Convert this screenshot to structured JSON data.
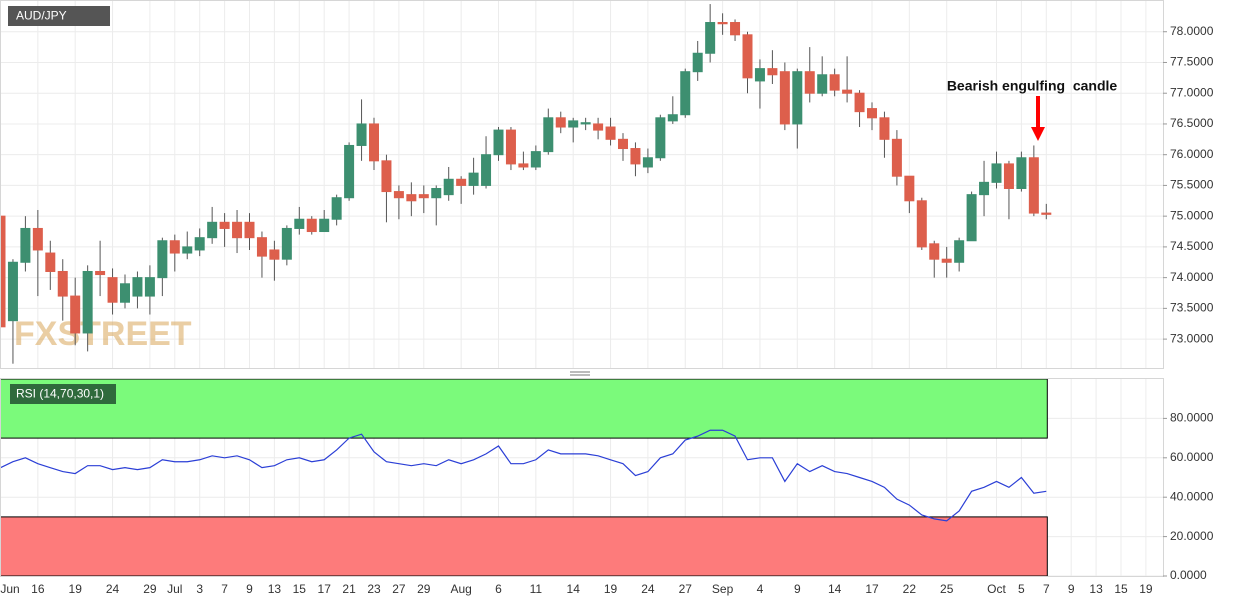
{
  "chart_data": [
    {
      "type": "candlestick",
      "title": "AUD/JPY",
      "watermark": "FXSTREET",
      "annotation": "Bearish engulfing  candle",
      "up_color": "#3d8f70",
      "down_color": "#dd5f4c",
      "grid": true,
      "categories": [
        "Jun",
        null,
        null,
        "16",
        null,
        null,
        "19",
        null,
        null,
        "24",
        null,
        null,
        "29",
        null,
        "Jul",
        null,
        "3",
        null,
        "7",
        null,
        "9",
        null,
        "13",
        null,
        "15",
        null,
        "17",
        null,
        "21",
        null,
        "23",
        null,
        "27",
        null,
        "29",
        null,
        null,
        "Aug",
        null,
        null,
        "6",
        null,
        null,
        "11",
        null,
        null,
        "14",
        null,
        null,
        "19",
        null,
        null,
        "24",
        null,
        null,
        "27",
        null,
        null,
        "Sep",
        null,
        null,
        "4",
        null,
        null,
        "9",
        null,
        null,
        "14",
        null,
        null,
        "17",
        null,
        null,
        "22",
        null,
        null,
        "25",
        null,
        null,
        null,
        "Oct",
        null,
        "5",
        null,
        "7",
        null,
        "9",
        null,
        "13",
        null,
        "15",
        null,
        "19"
      ],
      "open": [
        75.0,
        73.3,
        74.25,
        74.8,
        74.4,
        74.1,
        73.7,
        73.1,
        74.1,
        74.0,
        73.6,
        73.7,
        73.7,
        74.0,
        74.6,
        74.4,
        74.45,
        74.65,
        74.9,
        74.9,
        74.9,
        74.65,
        74.45,
        74.3,
        74.8,
        74.95,
        74.75,
        74.95,
        75.3,
        76.15,
        76.5,
        75.9,
        75.4,
        75.35,
        75.35,
        75.3,
        75.35,
        75.6,
        75.5,
        75.5,
        76.0,
        76.4,
        75.85,
        75.8,
        76.05,
        76.6,
        76.45,
        76.5,
        76.5,
        76.45,
        76.25,
        76.1,
        75.8,
        75.95,
        76.55,
        76.65,
        77.35,
        77.65,
        78.15,
        78.15,
        77.95,
        77.2,
        77.4,
        77.35,
        76.5,
        77.35,
        77.0,
        77.3,
        77.05,
        77.0,
        76.75,
        76.6,
        76.25,
        75.65,
        75.25,
        74.55,
        74.3,
        74.25,
        74.6,
        75.35,
        75.55,
        75.85,
        75.45,
        75.95,
        75.05,
        null,
        null,
        null,
        null,
        null,
        null,
        null,
        null
      ],
      "high": [
        75.1,
        74.3,
        75.0,
        75.1,
        74.6,
        74.3,
        74.0,
        74.2,
        74.6,
        74.15,
        74.05,
        74.1,
        74.2,
        74.65,
        74.7,
        74.75,
        74.8,
        75.15,
        75.05,
        75.1,
        75.05,
        74.75,
        74.6,
        74.85,
        75.15,
        75.0,
        75.1,
        75.35,
        76.2,
        76.9,
        76.6,
        76.0,
        75.5,
        75.55,
        75.5,
        75.5,
        75.8,
        75.65,
        75.95,
        76.3,
        76.45,
        76.45,
        76.05,
        76.15,
        76.75,
        76.7,
        76.6,
        76.6,
        76.6,
        76.6,
        76.35,
        76.2,
        76.1,
        76.65,
        76.95,
        77.4,
        77.85,
        78.45,
        78.3,
        78.2,
        78.0,
        77.55,
        77.7,
        77.5,
        77.4,
        77.75,
        77.6,
        77.4,
        77.6,
        77.05,
        76.85,
        76.7,
        76.4,
        75.65,
        75.3,
        74.6,
        74.5,
        74.65,
        75.4,
        75.9,
        76.05,
        75.9,
        76.05,
        76.15,
        75.2,
        null,
        null,
        null,
        null,
        null,
        null,
        null,
        null
      ],
      "low": [
        73.1,
        72.6,
        74.1,
        73.7,
        73.8,
        73.3,
        72.9,
        72.8,
        73.7,
        73.4,
        73.5,
        73.5,
        73.4,
        73.7,
        74.1,
        74.3,
        74.35,
        74.55,
        74.5,
        74.4,
        74.45,
        74.0,
        73.95,
        74.2,
        74.7,
        74.7,
        74.75,
        74.85,
        75.25,
        75.9,
        75.75,
        74.9,
        74.95,
        75.0,
        75.05,
        74.85,
        75.25,
        75.2,
        75.35,
        75.45,
        75.9,
        75.75,
        75.75,
        75.75,
        76.0,
        76.35,
        76.2,
        76.4,
        76.25,
        76.15,
        75.9,
        75.65,
        75.7,
        75.9,
        76.5,
        76.6,
        77.2,
        77.5,
        77.95,
        77.85,
        77.0,
        76.75,
        77.15,
        76.4,
        76.1,
        76.85,
        76.95,
        76.95,
        76.85,
        76.45,
        76.4,
        75.95,
        75.5,
        75.05,
        74.45,
        74.0,
        74.0,
        74.1,
        74.6,
        75.0,
        75.45,
        74.95,
        75.4,
        75.0,
        74.95,
        null,
        null,
        null,
        null,
        null,
        null,
        null,
        null
      ],
      "close": [
        73.2,
        74.25,
        74.8,
        74.45,
        74.1,
        73.7,
        73.1,
        74.1,
        74.05,
        73.6,
        73.9,
        74.0,
        74.0,
        74.6,
        74.4,
        74.5,
        74.65,
        74.9,
        74.8,
        74.65,
        74.65,
        74.35,
        74.3,
        74.8,
        74.95,
        74.75,
        74.95,
        75.3,
        76.15,
        76.5,
        75.9,
        75.4,
        75.3,
        75.25,
        75.3,
        75.45,
        75.6,
        75.5,
        75.7,
        76.0,
        76.4,
        75.85,
        75.8,
        76.05,
        76.6,
        76.45,
        76.55,
        76.52,
        76.4,
        76.25,
        76.1,
        75.85,
        75.95,
        76.6,
        76.65,
        77.35,
        77.65,
        78.15,
        78.13,
        77.95,
        77.25,
        77.4,
        77.3,
        76.5,
        77.35,
        77.0,
        77.3,
        77.05,
        77.0,
        76.7,
        76.6,
        76.25,
        75.65,
        75.25,
        74.5,
        74.3,
        74.25,
        74.6,
        75.35,
        75.55,
        75.85,
        75.45,
        75.95,
        75.05,
        75.03,
        null,
        null,
        null,
        null,
        null,
        null,
        null,
        null
      ],
      "ylim": [
        72.53,
        78.5
      ],
      "yticks": [
        {
          "value": 73,
          "label": "73.0000"
        },
        {
          "value": 73.5,
          "label": "73.5000"
        },
        {
          "value": 74,
          "label": "74.0000"
        },
        {
          "value": 74.5,
          "label": "74.5000"
        },
        {
          "value": 75,
          "label": "75.0000"
        },
        {
          "value": 75.5,
          "label": "75.5000"
        },
        {
          "value": 76,
          "label": "76.0000"
        },
        {
          "value": 76.5,
          "label": "76.5000"
        },
        {
          "value": 77,
          "label": "77.0000"
        },
        {
          "value": 77.5,
          "label": "77.5000"
        },
        {
          "value": 78,
          "label": "78.0000"
        }
      ]
    },
    {
      "type": "line",
      "title": "RSI (14,70,30,1)",
      "color": "#2b3fd6",
      "overbought": 70,
      "oversold": 30,
      "overbought_color": "#7bfa7b",
      "oversold_color": "#fd7b7b",
      "grid": true,
      "values": [
        55,
        58,
        60,
        57,
        55,
        53,
        52,
        56,
        56,
        54,
        55,
        54,
        55,
        59,
        58,
        58,
        59,
        61,
        60,
        61,
        59,
        55,
        56,
        59,
        60,
        58,
        59,
        64,
        70,
        72,
        63,
        58,
        57,
        56,
        57,
        56,
        59,
        57,
        59,
        62,
        66,
        57,
        57,
        59,
        64,
        62,
        62,
        62,
        61,
        59,
        57,
        51,
        53,
        60,
        62,
        69,
        71,
        74,
        74,
        71,
        59,
        60,
        60,
        48,
        57,
        53,
        56,
        53,
        52,
        50,
        48,
        45,
        39,
        36,
        31,
        29,
        28,
        33,
        43,
        45,
        48,
        45,
        50,
        42,
        43,
        null,
        null,
        null,
        null,
        null,
        null,
        null,
        null
      ],
      "ylim": [
        0,
        100
      ],
      "yticks": [
        {
          "value": 0,
          "label": "0.0000"
        },
        {
          "value": 20,
          "label": "20.0000"
        },
        {
          "value": 40,
          "label": "40.0000"
        },
        {
          "value": 60,
          "label": "60.0000"
        },
        {
          "value": 80,
          "label": "80.0000"
        }
      ]
    }
  ]
}
